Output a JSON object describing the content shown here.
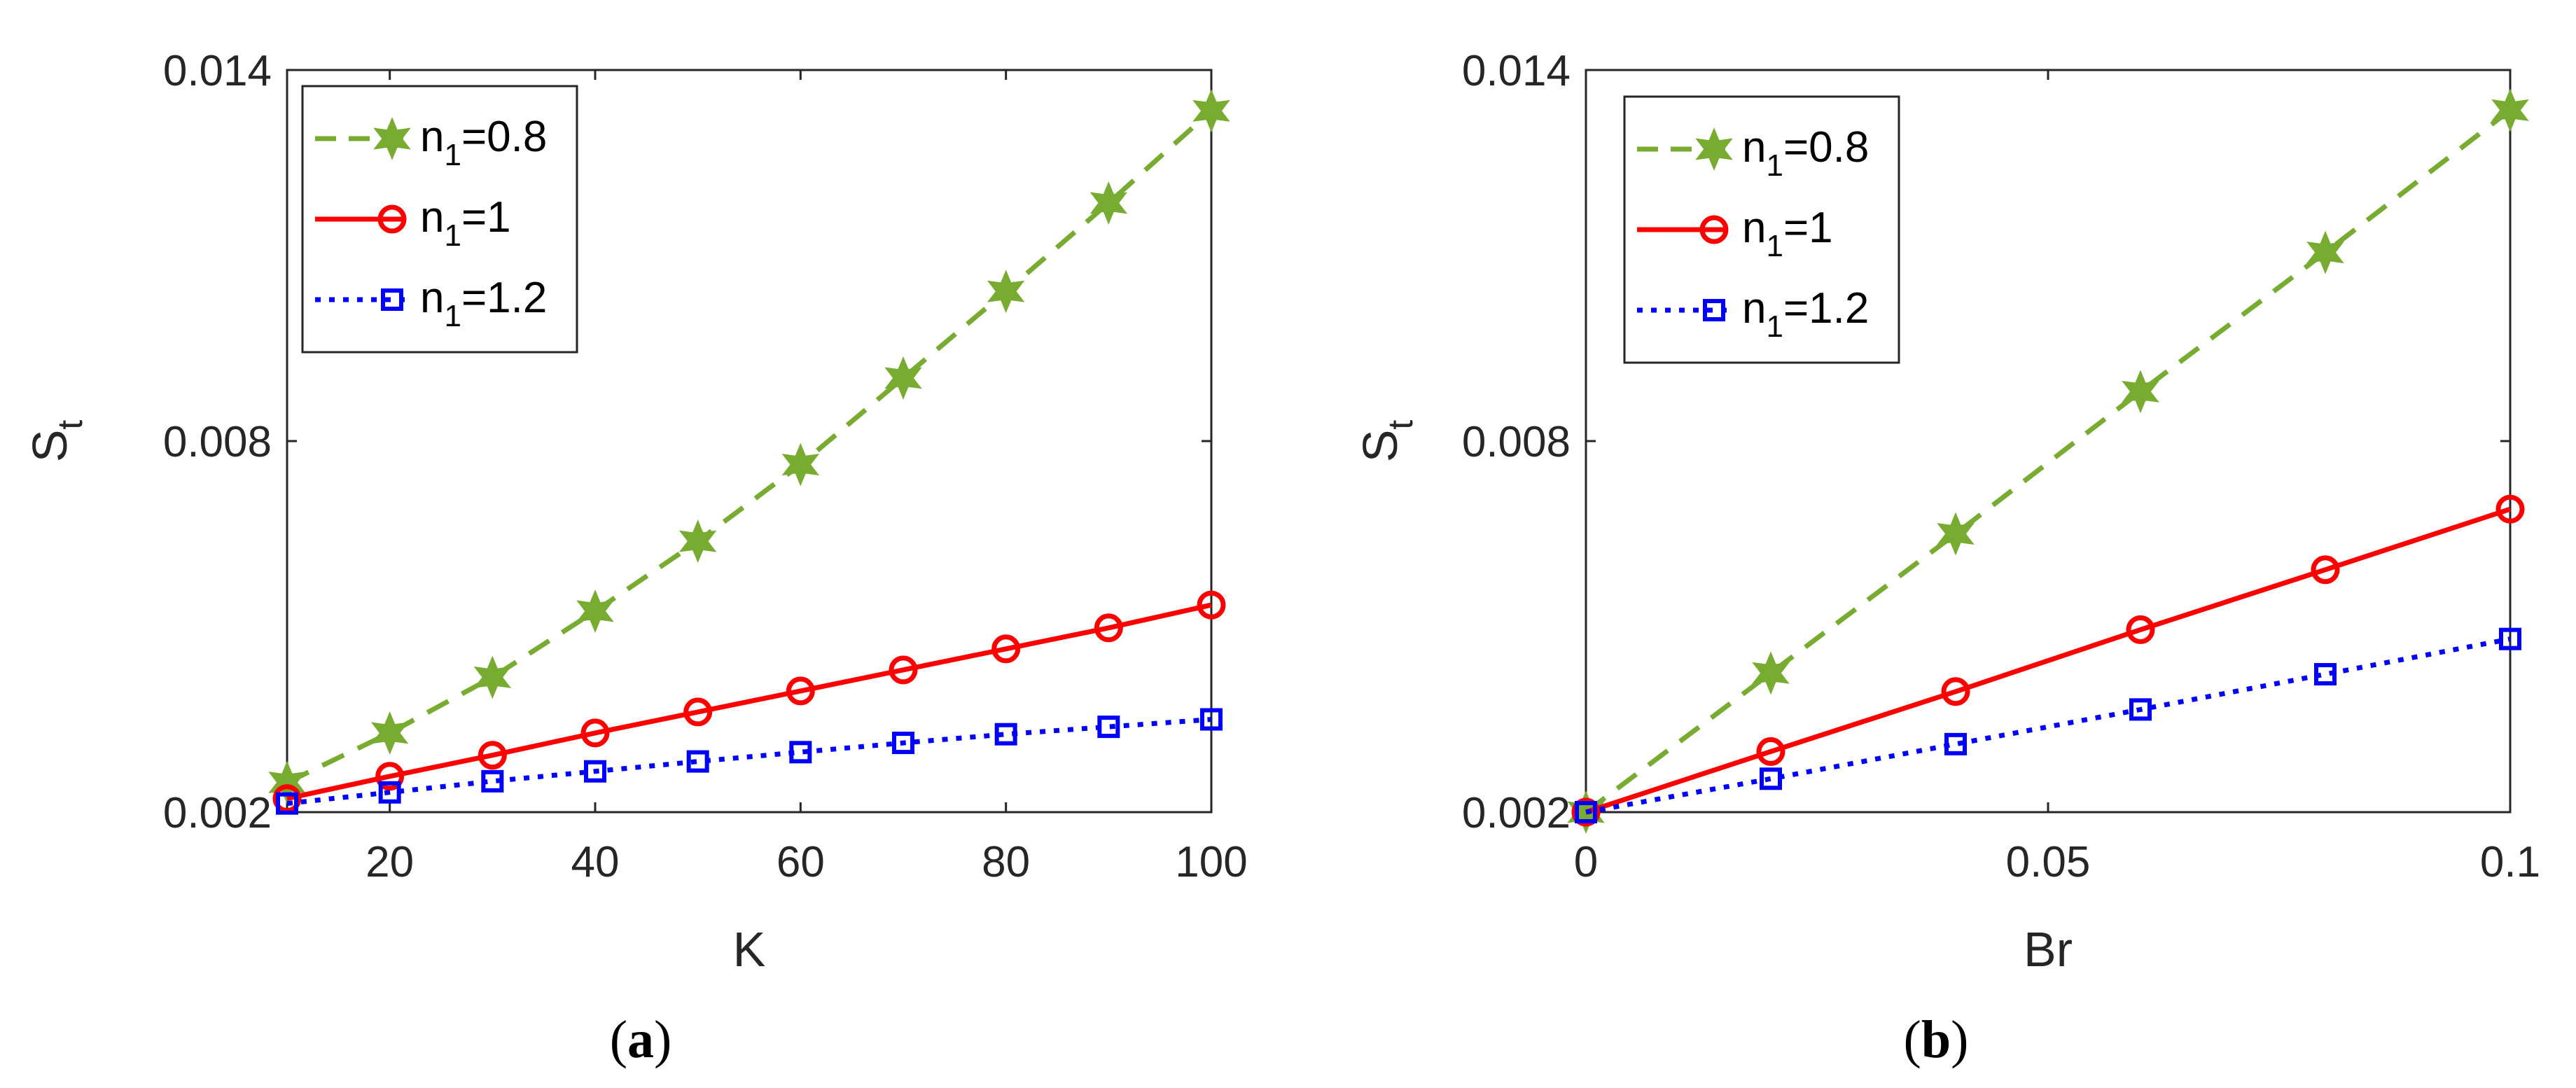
{
  "colors": {
    "green": "#77AC30",
    "red": "#FF0000",
    "blue": "#0000FF"
  },
  "legend_labels": [
    {
      "base": "n",
      "sub": "1",
      "rest": "=0.8"
    },
    {
      "base": "n",
      "sub": "1",
      "rest": "=1"
    },
    {
      "base": "n",
      "sub": "1",
      "rest": "=1.2"
    }
  ],
  "chart_data": [
    {
      "type": "line",
      "panel_label": "a",
      "xlabel": "K",
      "ylabel": {
        "base": "S",
        "sub": "t"
      },
      "xlim": [
        10,
        100
      ],
      "ylim": [
        0.002,
        0.014
      ],
      "xticks": [
        20,
        40,
        60,
        80,
        100
      ],
      "xtick_labels": [
        "20",
        "40",
        "60",
        "80",
        "100"
      ],
      "yticks": [
        0.002,
        0.008,
        0.014
      ],
      "ytick_labels": [
        "0.002",
        "0.008",
        "0.014"
      ],
      "x": [
        10,
        20,
        30,
        40,
        50,
        60,
        70,
        80,
        90,
        100
      ],
      "series": [
        {
          "name": "n1=0.8",
          "color": "green",
          "style": "dashed",
          "marker": "star",
          "values": [
            0.00248,
            0.00328,
            0.00418,
            0.00525,
            0.00638,
            0.00762,
            0.00902,
            0.01042,
            0.01185,
            0.01334
          ]
        },
        {
          "name": "n1=1",
          "color": "red",
          "style": "solid",
          "marker": "circle",
          "values": [
            0.00222,
            0.00258,
            0.00292,
            0.00328,
            0.00362,
            0.00396,
            0.0043,
            0.00464,
            0.00498,
            0.00535
          ]
        },
        {
          "name": "n1=1.2",
          "color": "blue",
          "style": "dotted",
          "marker": "square",
          "values": [
            0.00214,
            0.00232,
            0.0025,
            0.00266,
            0.00282,
            0.00297,
            0.00312,
            0.00326,
            0.00338,
            0.0035
          ]
        }
      ]
    },
    {
      "type": "line",
      "panel_label": "b",
      "xlabel": "Br",
      "ylabel": {
        "base": "S",
        "sub": "t"
      },
      "xlim": [
        0,
        0.1
      ],
      "ylim": [
        0.002,
        0.014
      ],
      "xticks": [
        0,
        0.05,
        0.1
      ],
      "xtick_labels": [
        "0",
        "0.05",
        "0.1"
      ],
      "yticks": [
        0.002,
        0.008,
        0.014
      ],
      "ytick_labels": [
        "0.002",
        "0.008",
        "0.014"
      ],
      "x": [
        0,
        0.02,
        0.04,
        0.06,
        0.08,
        0.1
      ],
      "series": [
        {
          "name": "n1=0.8",
          "color": "green",
          "style": "dashed",
          "marker": "star",
          "values": [
            0.002,
            0.00425,
            0.0065,
            0.0088,
            0.01105,
            0.01335
          ]
        },
        {
          "name": "n1=1",
          "color": "red",
          "style": "solid",
          "marker": "circle",
          "values": [
            0.002,
            0.00298,
            0.00395,
            0.00495,
            0.00592,
            0.0069
          ]
        },
        {
          "name": "n1=1.2",
          "color": "blue",
          "style": "dotted",
          "marker": "square",
          "values": [
            0.002,
            0.00254,
            0.0031,
            0.00366,
            0.00423,
            0.0048
          ]
        }
      ]
    }
  ]
}
